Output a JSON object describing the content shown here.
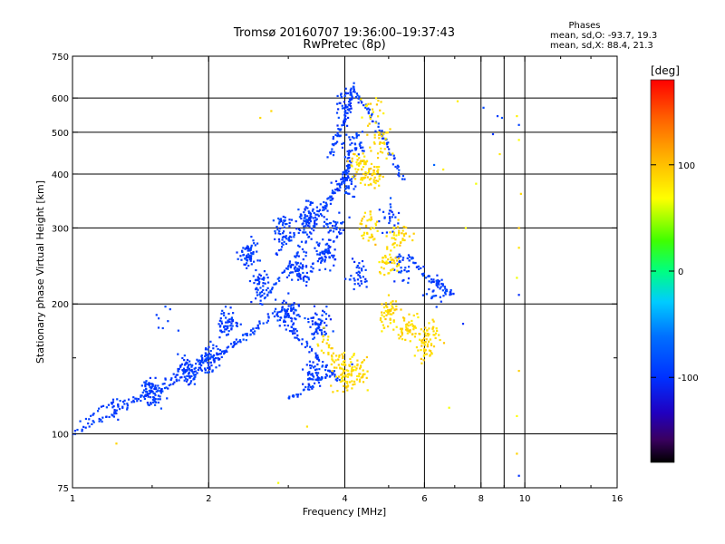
{
  "header": {
    "title": "Tromsø 20160707 19:36:00–19:37:43",
    "subtitle": "RwPretec (8p)"
  },
  "phases": {
    "heading": "Phases",
    "line_o": "mean, sd,O: -93.7, 19.3",
    "line_x": "mean, sd,X:  88.4, 21.3"
  },
  "colorbar": {
    "label": "[deg]",
    "ticks": [
      100,
      0,
      -100
    ],
    "range": [
      -180,
      180
    ]
  },
  "chart_data": {
    "type": "scatter",
    "title": "Tromsø 20160707 19:36:00–19:37:43",
    "subtitle": "RwPretec (8p)",
    "xlabel": "Frequency [MHz]",
    "ylabel": "Stationary phase Virtual Height [km]",
    "x_scale": "log2",
    "y_scale": "log",
    "xlim": [
      1,
      16
    ],
    "ylim": [
      75,
      750
    ],
    "x_ticks": [
      1,
      2,
      4,
      6,
      8,
      10,
      16
    ],
    "x_minor_ticks": [
      1.5,
      3,
      5,
      7,
      9,
      12,
      14
    ],
    "y_ticks": [
      75,
      100,
      200,
      300,
      400,
      500,
      600,
      750
    ],
    "y_minor_ticks": [
      150
    ],
    "grid_x": [
      2,
      4,
      6,
      8,
      9,
      10
    ],
    "grid_y": [
      100,
      200,
      300,
      400,
      500,
      600
    ],
    "colorbar_label": "[deg]",
    "colorbar_range": [
      -180,
      180
    ],
    "series": [
      {
        "name": "O",
        "color_value": -93.7,
        "traces": [
          {
            "x": [
              1.0,
              1.1,
              1.2,
              1.35,
              1.5,
              1.65,
              1.8,
              1.95,
              2.1,
              2.3,
              2.5,
              2.7,
              2.9
            ],
            "y": [
              100,
              105,
              110,
              118,
              124,
              130,
              137,
              145,
              152,
              162,
              173,
              185,
              195
            ]
          },
          {
            "x": [
              1.05,
              1.2,
              1.4,
              1.6,
              1.8,
              2.0,
              2.2,
              2.4,
              2.6
            ],
            "y": [
              107,
              117,
              122,
              133,
              142,
              150,
              158,
              168,
              178
            ]
          },
          {
            "x": [
              2.6,
              2.8,
              3.0,
              3.2,
              3.4,
              3.6,
              3.8,
              4.0,
              4.1
            ],
            "y": [
              200,
              220,
              245,
              270,
              300,
              330,
              360,
              390,
              420
            ]
          },
          {
            "x": [
              2.8,
              3.0,
              3.2,
              3.4,
              3.6,
              3.8,
              4.0,
              4.05,
              4.1
            ],
            "y": [
              260,
              280,
              300,
              320,
              340,
              365,
              395,
              430,
              460
            ]
          },
          {
            "x": [
              3.7,
              3.8,
              3.9,
              4.0,
              4.05,
              4.1,
              4.15,
              4.2
            ],
            "y": [
              440,
              470,
              500,
              530,
              560,
              590,
              620,
              640
            ]
          },
          {
            "x": [
              4.2,
              4.4,
              4.6,
              4.8,
              5.0,
              5.2,
              5.4
            ],
            "y": [
              620,
              580,
              540,
              500,
              460,
              420,
              380
            ]
          },
          {
            "x": [
              2.9,
              3.1,
              3.3,
              3.5,
              3.7,
              3.9
            ],
            "y": [
              180,
              170,
              160,
              150,
              140,
              132
            ]
          },
          {
            "x": [
              5.5,
              5.8,
              6.1,
              6.4,
              6.7,
              7.0
            ],
            "y": [
              260,
              245,
              230,
              220,
              215,
              210
            ]
          },
          {
            "x": [
              3.0,
              3.2,
              3.4,
              3.6,
              3.8
            ],
            "y": [
              120,
              125,
              130,
              135,
              140
            ]
          }
        ],
        "clusters": [
          {
            "x": 1.5,
            "y": 125,
            "n": 70
          },
          {
            "x": 1.8,
            "y": 140,
            "n": 70
          },
          {
            "x": 2.0,
            "y": 150,
            "n": 60
          },
          {
            "x": 2.2,
            "y": 180,
            "n": 55
          },
          {
            "x": 2.45,
            "y": 260,
            "n": 60
          },
          {
            "x": 2.6,
            "y": 220,
            "n": 50
          },
          {
            "x": 2.9,
            "y": 300,
            "n": 45
          },
          {
            "x": 3.0,
            "y": 190,
            "n": 70
          },
          {
            "x": 3.2,
            "y": 240,
            "n": 70
          },
          {
            "x": 3.3,
            "y": 320,
            "n": 60
          },
          {
            "x": 3.5,
            "y": 180,
            "n": 60
          },
          {
            "x": 3.6,
            "y": 260,
            "n": 60
          },
          {
            "x": 3.8,
            "y": 300,
            "n": 40
          },
          {
            "x": 4.0,
            "y": 380,
            "n": 40
          },
          {
            "x": 4.2,
            "y": 470,
            "n": 35
          },
          {
            "x": 4.0,
            "y": 580,
            "n": 30
          },
          {
            "x": 3.4,
            "y": 140,
            "n": 45
          },
          {
            "x": 4.3,
            "y": 230,
            "n": 35
          },
          {
            "x": 5.3,
            "y": 240,
            "n": 30
          },
          {
            "x": 6.4,
            "y": 215,
            "n": 30
          },
          {
            "x": 5.0,
            "y": 320,
            "n": 25
          },
          {
            "x": 1.6,
            "y": 190,
            "n": 8
          },
          {
            "x": 1.25,
            "y": 115,
            "n": 20
          }
        ]
      },
      {
        "name": "X",
        "color_value": 88.4,
        "clusters": [
          {
            "x": 4.3,
            "y": 420,
            "n": 45
          },
          {
            "x": 4.6,
            "y": 400,
            "n": 45
          },
          {
            "x": 4.8,
            "y": 480,
            "n": 35
          },
          {
            "x": 4.5,
            "y": 300,
            "n": 40
          },
          {
            "x": 5.0,
            "y": 250,
            "n": 45
          },
          {
            "x": 5.3,
            "y": 290,
            "n": 35
          },
          {
            "x": 5.0,
            "y": 190,
            "n": 55
          },
          {
            "x": 5.5,
            "y": 175,
            "n": 50
          },
          {
            "x": 6.0,
            "y": 160,
            "n": 40
          },
          {
            "x": 4.3,
            "y": 140,
            "n": 45
          },
          {
            "x": 4.0,
            "y": 135,
            "n": 40
          },
          {
            "x": 3.9,
            "y": 145,
            "n": 30
          },
          {
            "x": 6.2,
            "y": 170,
            "n": 30
          },
          {
            "x": 4.6,
            "y": 560,
            "n": 20
          },
          {
            "x": 3.6,
            "y": 160,
            "n": 20
          }
        ]
      },
      {
        "name": "scattered",
        "color_value": 60,
        "points": [
          {
            "x": 9.6,
            "y": 545
          },
          {
            "x": 9.7,
            "y": 520
          },
          {
            "x": 9.7,
            "y": 480
          },
          {
            "x": 9.8,
            "y": 360
          },
          {
            "x": 9.7,
            "y": 300
          },
          {
            "x": 9.7,
            "y": 270
          },
          {
            "x": 9.6,
            "y": 230
          },
          {
            "x": 9.7,
            "y": 210
          },
          {
            "x": 9.7,
            "y": 140
          },
          {
            "x": 9.6,
            "y": 110
          },
          {
            "x": 9.6,
            "y": 90
          },
          {
            "x": 9.7,
            "y": 80
          },
          {
            "x": 8.7,
            "y": 545
          },
          {
            "x": 8.9,
            "y": 540
          },
          {
            "x": 8.8,
            "y": 445
          },
          {
            "x": 8.1,
            "y": 570
          },
          {
            "x": 7.8,
            "y": 380
          },
          {
            "x": 7.1,
            "y": 590
          },
          {
            "x": 6.3,
            "y": 420
          },
          {
            "x": 6.6,
            "y": 410
          },
          {
            "x": 7.4,
            "y": 300
          },
          {
            "x": 7.3,
            "y": 180
          },
          {
            "x": 6.8,
            "y": 115
          },
          {
            "x": 2.85,
            "y": 77
          },
          {
            "x": 3.3,
            "y": 104
          },
          {
            "x": 1.25,
            "y": 95
          },
          {
            "x": 2.6,
            "y": 540
          },
          {
            "x": 8.5,
            "y": 495
          },
          {
            "x": 2.75,
            "y": 560
          },
          {
            "x": 4.15,
            "y": 145
          }
        ]
      }
    ]
  }
}
